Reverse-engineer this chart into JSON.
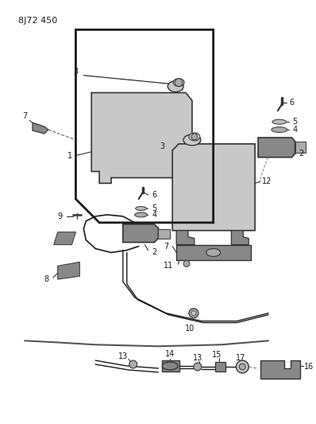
{
  "title": "8J72 450",
  "bg_color": "#ffffff",
  "line_color": "#1a1a1a",
  "gray_fill": "#c8c8c8",
  "gray_dark": "#888888",
  "gray_light": "#e0e0e0"
}
